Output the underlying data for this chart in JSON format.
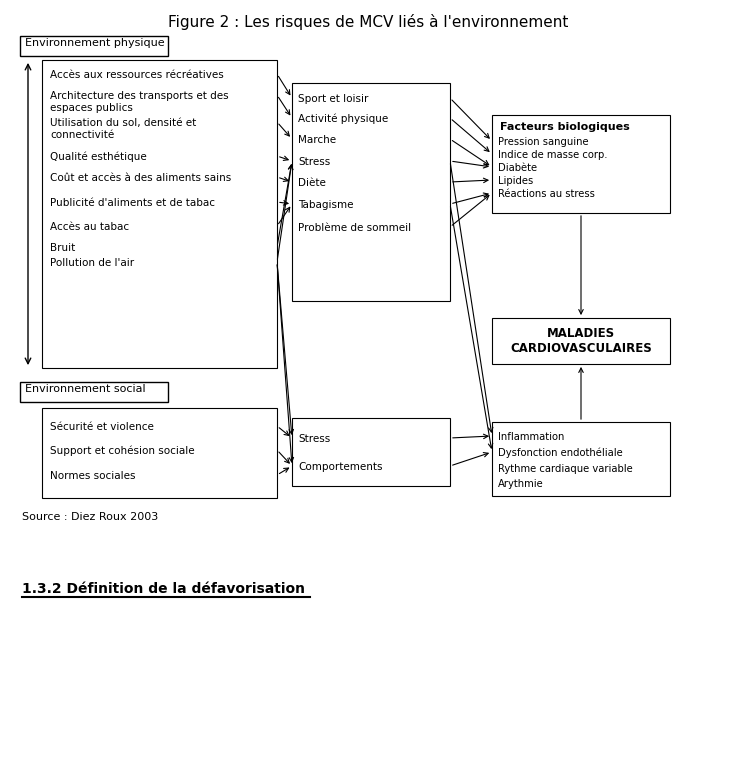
{
  "title": "Figure 2 : Les risques de MCV liés à l'environnement",
  "background_color": "#ffffff",
  "title_fontsize": 11,
  "env_physique_label": "Environnement physique",
  "env_social_label": "Environnement social",
  "physique_items": [
    "Accès aux ressources récréatives",
    "Architecture des transports et des\nespaces publics",
    "Utilisation du sol, densité et\nconnectivité",
    "Qualité esthétique",
    "Coût et accès à des aliments sains",
    "Publicité d'aliments et de tabac",
    "Accès au tabac",
    "Bruit",
    "Pollution de l'air"
  ],
  "intermediaire_top_items": [
    "Sport et loisir",
    "Activité physique",
    "Marche",
    "Stress",
    "Diète",
    "Tabagisme",
    "Problème de sommeil"
  ],
  "bio_label": "Facteurs biologiques",
  "bio_items": [
    "Pression sanguine",
    "Indice de masse corp.",
    "Diabète",
    "Lipides",
    "Réactions au stress"
  ],
  "mcv_label": "MALADIES\nCARDIOVASCULAIRES",
  "social_items": [
    "Sécurité et violence",
    "Support et cohésion sociale",
    "Normes sociales"
  ],
  "intermediaire_bot_items": [
    "Stress",
    "Comportements"
  ],
  "other_bio_items": [
    "Inflammation",
    "Dysfonction endothéliale",
    "Rythme cardiaque variable",
    "Arythmie"
  ],
  "source_label": "Source : Diez Roux 2003",
  "footer_label": "1.3.2 Définition de la défavorisation"
}
